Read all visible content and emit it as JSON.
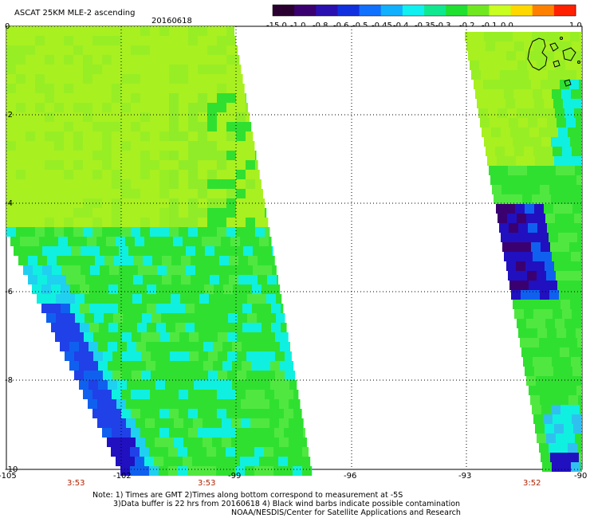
{
  "header": {
    "title": "ASCAT 25KM MLE-2 ascending",
    "date": "20160618"
  },
  "colorbar": {
    "labels": [
      "-15.0",
      "-1.0",
      "-0.8",
      "-0.6",
      "-0.5",
      "-0.45",
      "-0.4",
      "-0.35",
      "-0.3",
      "-0.2",
      "-0.1",
      "0.0",
      "1.0"
    ],
    "colors": [
      "#2a0030",
      "#3a0070",
      "#2a10b0",
      "#1030e0",
      "#1070ff",
      "#10b0ff",
      "#10f0f0",
      "#10e890",
      "#20e030",
      "#70e820",
      "#c8ff20",
      "#ffd800",
      "#ff8000",
      "#ff2000"
    ]
  },
  "axes": {
    "y_labels": [
      "0",
      "-2",
      "-4",
      "-6",
      "-8",
      "-10"
    ],
    "x_labels": [
      "-105",
      "-102",
      "-99",
      "-96",
      "-93",
      "-90"
    ]
  },
  "times": [
    "3:53",
    "3:53",
    "3:52"
  ],
  "notes": {
    "line1": "Note: 1) Times are GMT 2)Times along bottom correspond to measurement at -5S",
    "line2": "3)Data buffer is 22 hrs from 20160618 4) Black wind barbs indicate possible contamination",
    "line3": "NOAA/NESDIS/Center for Satellite Applications and Research"
  },
  "map_colors": {
    "yellowgreen": "#a8f020",
    "green": "#30e030",
    "cyan": "#10f0e0",
    "blue": "#1060f0",
    "darkblue": "#2010c0",
    "purple": "#3a0070"
  }
}
